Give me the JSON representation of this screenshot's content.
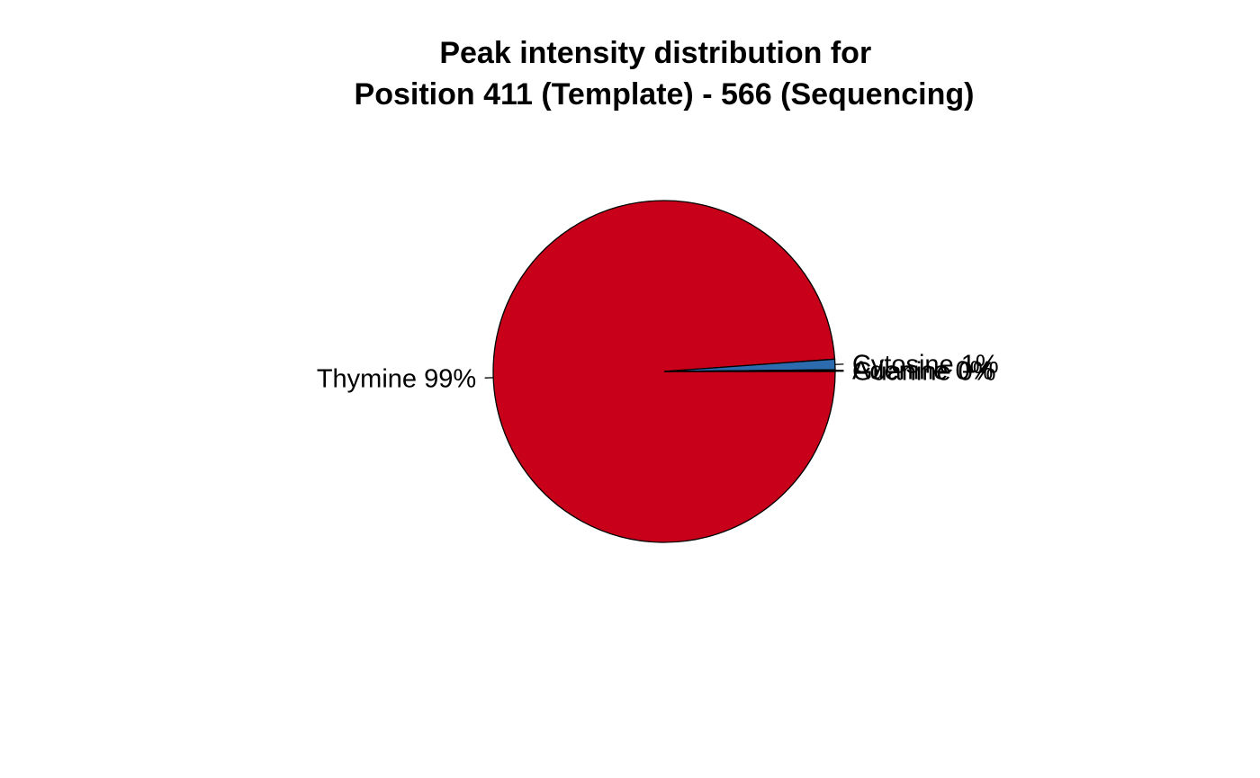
{
  "chart_data": {
    "type": "pie",
    "title": "Peak intensity distribution for\nPosition 411 (Template) - 566 (Sequencing)",
    "title_lines": [
      "Peak intensity distribution for",
      "Position 411 (Template) - 566 (Sequencing)"
    ],
    "slices": [
      {
        "name": "Thymine",
        "label": "Thymine 99%",
        "value": 99.0,
        "color": "#C8001A"
      },
      {
        "name": "Cytosine",
        "label": "Cytosine 1%",
        "value": 1.0,
        "color": "#2C6BAE"
      },
      {
        "name": "Adenine",
        "label": "Adenine 0%",
        "value": 0.1,
        "color": "#1A1A1A"
      },
      {
        "name": "Guanine",
        "label": "Guanine 0%",
        "value": 0.05,
        "color": "#1A1A1A"
      }
    ],
    "start_angle_deg": 0,
    "direction": "clockwise",
    "slice_border_color": "#000000",
    "legend": "none"
  }
}
